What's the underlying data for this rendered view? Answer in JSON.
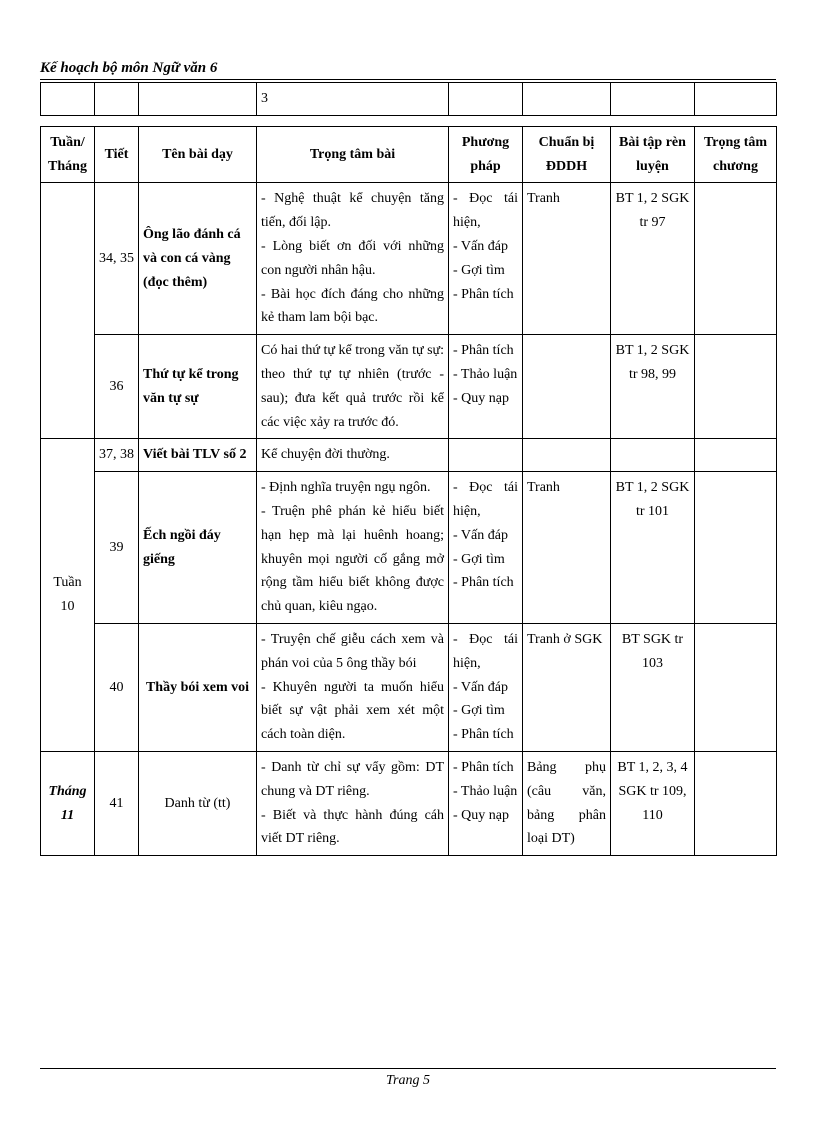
{
  "header": "Kế hoạch bộ môn Ngữ văn 6",
  "footer": "Trang 5",
  "topTable": {
    "cell_col4": "3"
  },
  "columns": {
    "tuan": "Tuần/ Tháng",
    "tiet": "Tiết",
    "ten": "Tên bài dạy",
    "trong": "Trọng tâm bài",
    "pp": "Phương pháp",
    "cb": "Chuẩn bị ĐDDH",
    "bt": "Bài tập rèn luyện",
    "tc": "Trọng tâm chương"
  },
  "rows": [
    {
      "tuan": "",
      "tiet": "34, 35",
      "ten": "Ông lão đánh cá và con cá vàng (đọc thêm)",
      "trong": "- Nghệ thuật kể chuyện tăng tiến, đối lập.\n- Lòng biết ơn đối với những con người nhân hậu.\n- Bài học đích đáng cho những kẻ tham lam bội bạc.",
      "pp": "- Đọc tái hiện,\n- Vấn đáp\n- Gợi tìm\n- Phân tích",
      "cb": "Tranh",
      "bt": "BT 1, 2 SGK tr 97",
      "tc": ""
    },
    {
      "tuan": "",
      "tiet": "36",
      "ten": "Thứ tự kể trong văn tự sự",
      "trong": "Có hai thứ tự kể trong văn tự sự: theo thứ tự tự nhiên (trước - sau); đưa kết quả trước rồi kể các việc xảy ra trước đó.",
      "pp": "- Phân tích\n- Thảo luận\n- Quy nạp",
      "cb": "",
      "bt": "BT 1, 2 SGK tr 98, 99",
      "tc": ""
    },
    {
      "tuan": "Tuần 10",
      "tiet": "37, 38",
      "ten": "Viết bài TLV số 2",
      "trong": "Kể chuyện đời thường.",
      "pp": "",
      "cb": "",
      "bt": "",
      "tc": ""
    },
    {
      "tuan": "",
      "tiet": "39",
      "ten": "Ếch ngồi đáy giếng",
      "trong": "- Định nghĩa truyện ngụ ngôn.\n- Truện phê phán kẻ hiểu biết hạn hẹp mà lại huênh hoang; khuyên mọi người cố gắng mở rộng tầm hiểu biết không được chủ quan, kiêu ngạo.",
      "pp": "- Đọc tái hiện,\n- Vấn đáp\n- Gợi tìm\n- Phân tích",
      "cb": "Tranh",
      "bt": "BT 1, 2 SGK tr 101",
      "tc": ""
    },
    {
      "tuan": "",
      "tiet": "40",
      "ten": "Thầy bói xem voi",
      "trong": "- Truyện chế giễu cách xem và phán voi của 5 ông thầy bói\n- Khuyên người ta muốn hiểu biết sự vật phải xem xét một cách toàn diện.",
      "pp": "- Đọc tái hiện,\n- Vấn đáp\n- Gợi tìm\n- Phân tích",
      "cb": "Tranh ở SGK",
      "bt": "BT SGK tr 103",
      "tc": ""
    },
    {
      "tuan": "Tháng 11",
      "tiet": "41",
      "ten": "Danh từ (tt)",
      "trong": "- Danh từ chỉ sự vẩy gồm: DT chung và DT riêng.\n- Biết và thực hành đúng cáh viết DT riêng.",
      "pp": "- Phân tích\n- Thảo luận\n- Quy nạp",
      "cb": "Bảng phụ (câu văn, bảng phân loại DT)",
      "bt": "BT 1, 2, 3, 4 SGK tr 109, 110",
      "tc": ""
    }
  ]
}
